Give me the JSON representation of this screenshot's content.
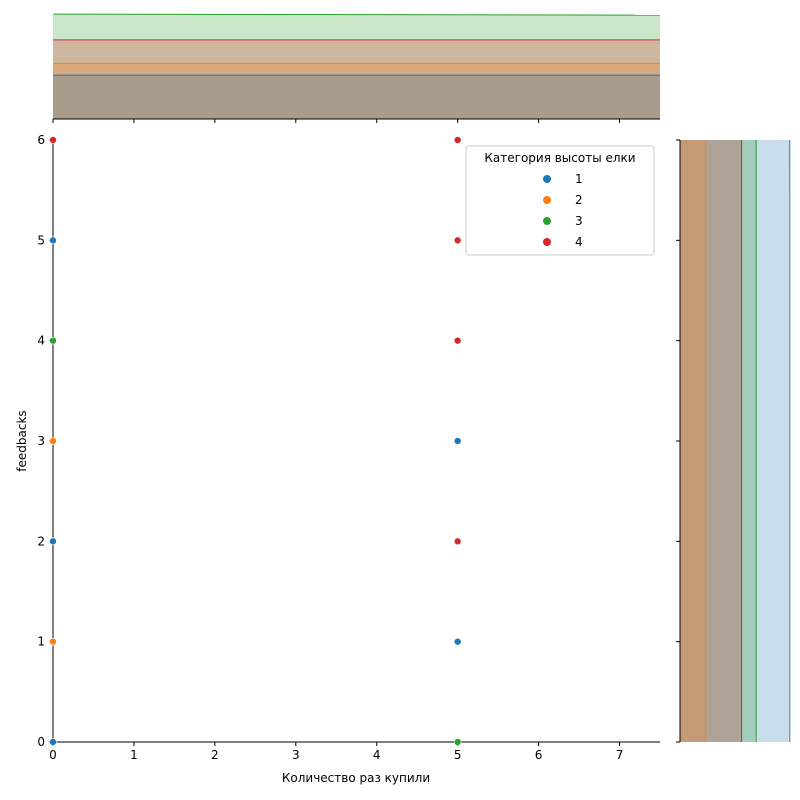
{
  "chart_data": {
    "type": "scatter",
    "subtype": "jointplot-with-kde-marginals",
    "xlabel": "Количество раз купили",
    "ylabel": "feedbacks",
    "xlim": [
      0,
      7.5
    ],
    "ylim": [
      0,
      6
    ],
    "xticks": [
      "0",
      "1",
      "2",
      "3",
      "4",
      "5",
      "6",
      "7"
    ],
    "yticks": [
      "0",
      "1",
      "2",
      "3",
      "4",
      "5",
      "6"
    ],
    "legend": {
      "title": "Категория высоты елки",
      "placement": "top-right",
      "entries": [
        "1",
        "2",
        "3",
        "4"
      ]
    },
    "colors": {
      "1": "#1f77b4",
      "2": "#ff7f0e",
      "3": "#2ca02c",
      "4": "#d62728"
    },
    "series": [
      {
        "name": "1",
        "points": [
          [
            0,
            0
          ],
          [
            0,
            2
          ],
          [
            0,
            5
          ],
          [
            5,
            1
          ],
          [
            5,
            3
          ]
        ]
      },
      {
        "name": "2",
        "points": [
          [
            0,
            1
          ],
          [
            0,
            3
          ]
        ]
      },
      {
        "name": "3",
        "points": [
          [
            0,
            4
          ],
          [
            5,
            0
          ]
        ]
      },
      {
        "name": "4",
        "points": [
          [
            0,
            6
          ],
          [
            5,
            2
          ],
          [
            5,
            4
          ],
          [
            5,
            5
          ],
          [
            5,
            6
          ]
        ]
      }
    ],
    "marginal_x_density": {
      "1": 0.41,
      "2": 0.52,
      "3": 0.98,
      "4": 0.74
    },
    "marginal_y_density": {
      "1": 0.98,
      "2": 0.23,
      "3": 0.68,
      "4": 0.55
    }
  }
}
